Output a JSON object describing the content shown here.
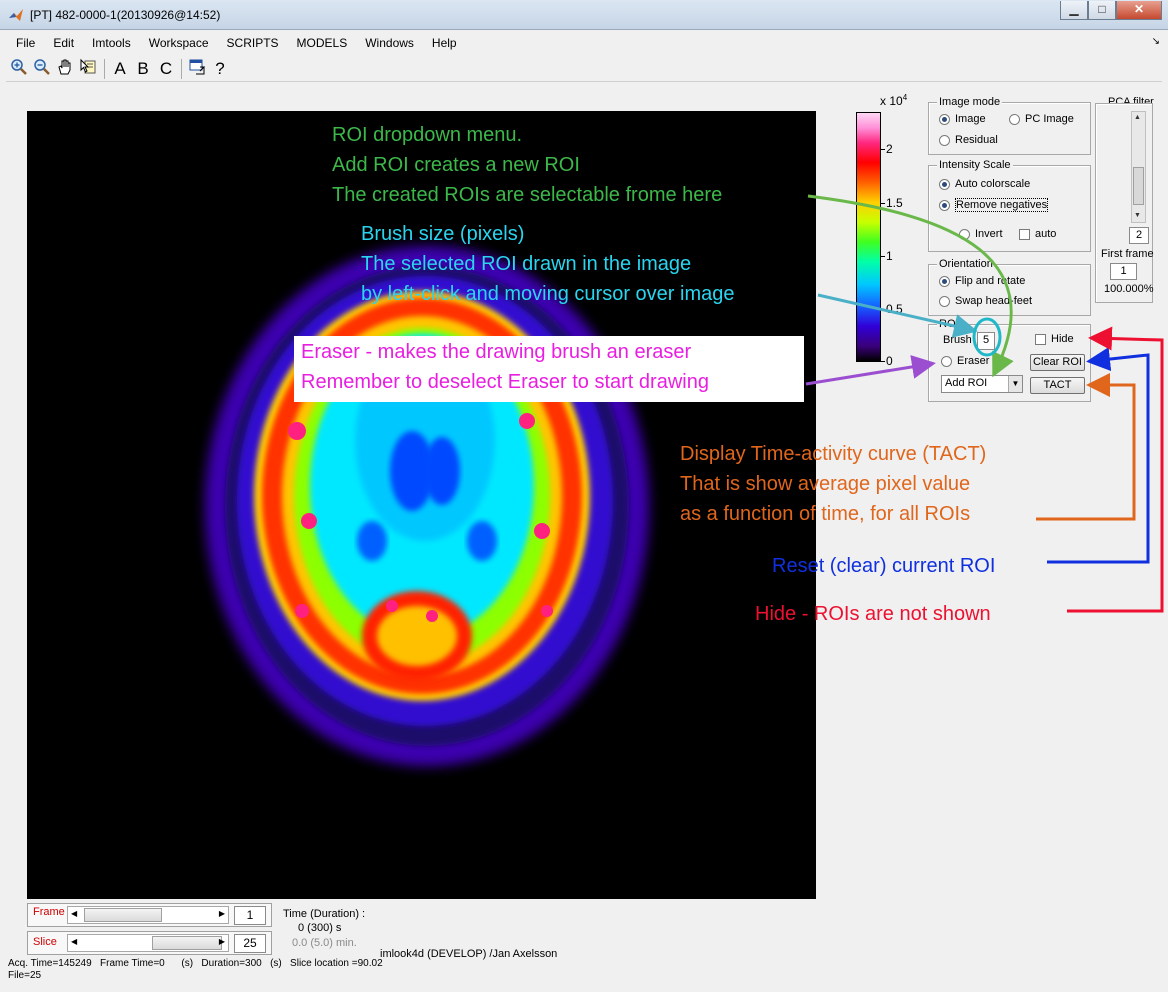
{
  "window": {
    "title": "[PT] 482-0000-1(20130926@14:52)",
    "buttons": {
      "minimize": "▁",
      "maximize": "□",
      "close": "✕"
    }
  },
  "menu": [
    "File",
    "Edit",
    "Imtools",
    "Workspace",
    "SCRIPTS",
    "MODELS",
    "Windows",
    "Help"
  ],
  "toolbar": {
    "labels": {
      "a": "A",
      "b": "B",
      "c": "C",
      "help": "?"
    }
  },
  "colorbar": {
    "exponent_base": "x 10",
    "exponent_power": "4",
    "ticks": [
      "2",
      "1.5",
      "1",
      "0.5",
      "0"
    ]
  },
  "image_mode": {
    "title": "Image mode",
    "options": [
      "Image",
      "PC Image",
      "Residual"
    ],
    "selected": "Image"
  },
  "intensity_scale": {
    "title": "Intensity Scale",
    "auto_colorscale": "Auto colorscale",
    "remove_negatives": "Remove negatives",
    "invert": "Invert",
    "auto": "auto"
  },
  "orientation": {
    "title": "Orientation",
    "flip_rotate": "Flip and rotate",
    "swap_head_feet": "Swap head-feet"
  },
  "roi": {
    "title": "ROI",
    "brush_label": "Brush",
    "brush_value": "5",
    "hide_label": "Hide",
    "eraser_label": "Eraser",
    "clear_button": "Clear ROI",
    "dropdown_value": "Add ROI",
    "tact_button": "TACT"
  },
  "pca": {
    "title": "PCA filter",
    "value": "2",
    "first_frame_label": "First frame",
    "first_frame_value": "1",
    "percent": "100.000%"
  },
  "annotations": {
    "roi_dropdown": [
      "ROI dropdown menu.",
      "Add ROI creates a new ROI",
      "The created ROIs are selectable frome here"
    ],
    "brush": [
      "Brush size (pixels)",
      "The selected ROI drawn in the image",
      "by  left-click and moving cursor over image"
    ],
    "eraser": [
      "Eraser - makes the drawing brush an eraser",
      "Remember to deselect Eraser to start drawing"
    ],
    "tact": [
      "Display Time-activity curve (TACT)",
      "That is show average pixel value",
      "as a function of time, for all ROIs"
    ],
    "reset": "Reset (clear) current ROI",
    "hide": "Hide - ROIs are not shown",
    "colors": {
      "green": "#3cb84a",
      "cyan": "#2ad5f0",
      "magenta": "#e81ee0",
      "orange": "#e0661c",
      "blue": "#1030e0",
      "red": "#ee1030",
      "purple": "#9b4fd0"
    }
  },
  "bottom": {
    "frame_label": "Frame",
    "frame_value": "1",
    "slice_label": "Slice",
    "slice_value": "25",
    "time_label": "Time (Duration) :",
    "time_value": "0 (300) s",
    "time_min": "0.0 (5.0) min.",
    "footer_info": "Acq. Time=145249   Frame Time=0      (s)   Duration=300   (s)   Slice location =90.02",
    "file_info": "File=25",
    "version": "imlook4d (DEVELOP) /Jan Axelsson"
  }
}
